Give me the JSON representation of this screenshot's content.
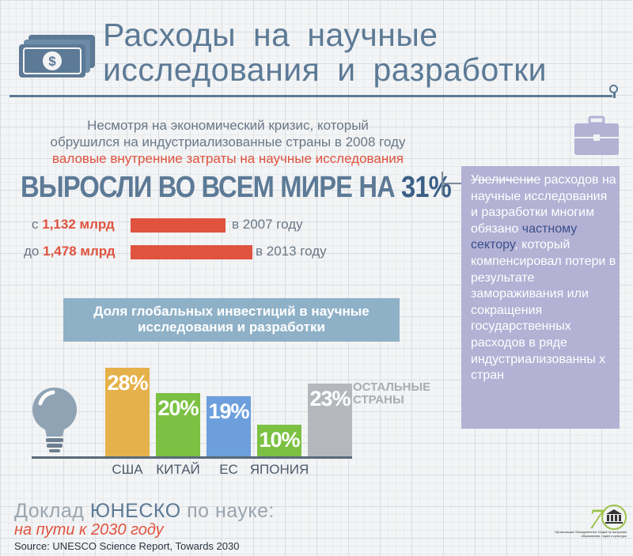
{
  "title": {
    "line1": "Расходы на научные",
    "line2": "исследования и разработки"
  },
  "intro": {
    "line1": "Несмотря на экономический кризис, который",
    "line2": "обрушился на индустриализованные страны в 2008 году",
    "line3": "валовые внутренние затраты на научные исследования"
  },
  "headline": {
    "text": "ВЫРОСЛИ ВО ВСЕМ МИРЕ НА",
    "percent": "31%"
  },
  "growth": {
    "from_prefix": "с",
    "from_value": "1,132 млрд",
    "from_suffix": "в 2007 году",
    "to_prefix": "до",
    "to_value": "1,478 млрд",
    "to_suffix": "в 2013 году"
  },
  "sidebar": {
    "first": "Увеличение",
    "text1": "расходов на научные исследования и разработки многим обязано",
    "highlight": "частному сектору",
    "text2": ", который компенсировал потери в результате замораживания или сокращения государственных расходов в ряде индустриализованны х стран"
  },
  "share_heading": {
    "line1": "Доля глобальных инвестиций в научные",
    "line2": "исследования и разработки"
  },
  "chart_data": {
    "type": "bar",
    "categories": [
      "США",
      "КИТАЙ",
      "ЕС",
      "ЯПОНИЯ",
      ""
    ],
    "values": [
      28,
      20,
      19,
      10,
      23
    ],
    "labels": [
      "28%",
      "20%",
      "19%",
      "10%",
      "23%"
    ],
    "colors": [
      "#e5b14a",
      "#7cc143",
      "#6d9fdd",
      "#7cc143",
      "#b4b8bc"
    ],
    "other_label_line1": "ОСТАЛЬНЫЕ",
    "other_label_line2": "СТРАНЫ"
  },
  "footer": {
    "title_prefix": "Доклад",
    "title_highlight": "ЮНЕСКО",
    "title_suffix": "по науке:",
    "subtitle": "на пути к 2030 году",
    "source": "Source: UNESCO Science Report, Towards 2030",
    "org": "Организация Объединенных Наций по вопросам образования, науки и культуры"
  },
  "colors": {
    "accent_blue": "#5c7a96",
    "accent_red": "#e0533f",
    "sidebar_bg": "#b3b1d4",
    "heading_bg": "#8fb1c7"
  },
  "icons": [
    "money-icon",
    "briefcase-icon",
    "lightbulb-icon",
    "unesco-logo-icon"
  ]
}
